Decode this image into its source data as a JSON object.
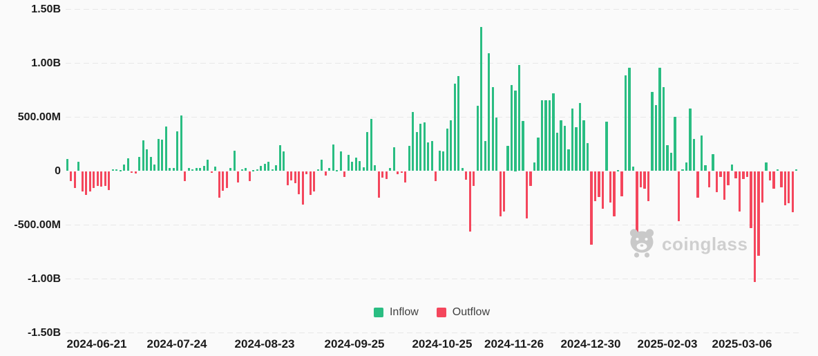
{
  "chart_data": {
    "type": "bar",
    "title": "",
    "description": "Daily ETF net flow bar chart: positive bars are inflows (green), negative bars are outflows (red)",
    "values_unit": "millions USD",
    "ylim_millions": [
      -1500,
      1500
    ],
    "grid": "horizontal-dashed",
    "legend_position": "bottom-center",
    "legend": [
      {
        "label": "Inflow",
        "color": "#2abd82"
      },
      {
        "label": "Outflow",
        "color": "#f4465c"
      }
    ],
    "y_ticks": [
      {
        "label": "1.50B",
        "value_millions": 1500
      },
      {
        "label": "1.00B",
        "value_millions": 1000
      },
      {
        "label": "500.00M",
        "value_millions": 500
      },
      {
        "label": "0",
        "value_millions": 0
      },
      {
        "label": "-500.00M",
        "value_millions": -500
      },
      {
        "label": "-1.00B",
        "value_millions": -1000
      },
      {
        "label": "-1.50B",
        "value_millions": -1500
      }
    ],
    "x_ticks": [
      {
        "label": "2024-06-21",
        "pos_pct": 11.82
      },
      {
        "label": "2024-07-24",
        "pos_pct": 21.62
      },
      {
        "label": "2024-08-23",
        "pos_pct": 32.35
      },
      {
        "label": "2024-09-25",
        "pos_pct": 43.33
      },
      {
        "label": "2024-10-25",
        "pos_pct": 54.05
      },
      {
        "label": "2024-11-26",
        "pos_pct": 62.84
      },
      {
        "label": "2024-12-30",
        "pos_pct": 72.21
      },
      {
        "label": "2025-02-03",
        "pos_pct": 81.59
      },
      {
        "label": "2025-03-06",
        "pos_pct": 90.71
      }
    ],
    "values_millions": [
      115,
      -96,
      -154,
      84,
      -192,
      -224,
      -192,
      -160,
      -141,
      -147,
      -141,
      -179,
      19,
      13,
      8,
      58,
      117,
      -15,
      -20,
      130,
      286,
      201,
      130,
      58,
      299,
      292,
      416,
      26,
      32,
      370,
      513,
      -91,
      26,
      19,
      30,
      32,
      45,
      104,
      -15,
      39,
      -247,
      -182,
      -156,
      32,
      188,
      -104,
      13,
      32,
      -91,
      6,
      19,
      45,
      65,
      84,
      13,
      52,
      240,
      182,
      -130,
      -84,
      -110,
      -214,
      -312,
      -26,
      -221,
      -188,
      13,
      104,
      -39,
      26,
      247,
      6,
      182,
      -52,
      149,
      84,
      123,
      91,
      34,
      364,
      487,
      52,
      -244,
      -58,
      -71,
      32,
      218,
      -26,
      -13,
      -103,
      237,
      545,
      359,
      442,
      455,
      263,
      282,
      -90,
      186,
      180,
      397,
      468,
      809,
      880,
      32,
      -77,
      -559,
      -135,
      603,
      1334,
      276,
      1096,
      782,
      494,
      -417,
      -378,
      237,
      795,
      750,
      987,
      462,
      -442,
      -141,
      83,
      308,
      654,
      660,
      660,
      724,
      353,
      468,
      417,
      199,
      579,
      405,
      631,
      470,
      258,
      -682,
      -277,
      -238,
      -348,
      457,
      -290,
      -418,
      10,
      -232,
      888,
      959,
      39,
      -573,
      -148,
      -161,
      -277,
      734,
      612,
      959,
      779,
      238,
      167,
      502,
      -464,
      13,
      77,
      578,
      299,
      -247,
      331,
      52,
      -149,
      156,
      -195,
      -52,
      -266,
      -130,
      58,
      -65,
      -377,
      -71,
      -52,
      -526,
      -1032,
      -786,
      -292,
      78,
      -84,
      -162,
      19,
      -149,
      -318,
      -299,
      -383,
      13
    ]
  },
  "watermark": {
    "text": "coinglass",
    "icon": "coinglass-bear-mascot-icon"
  },
  "colors": {
    "background": "#fafafa",
    "grid": "#e7e7e7",
    "axis_text": "#1b1b1b",
    "inflow": "#2abd82",
    "outflow": "#f4465c",
    "legend_text": "#404040",
    "watermark": "#cfcfcf"
  }
}
